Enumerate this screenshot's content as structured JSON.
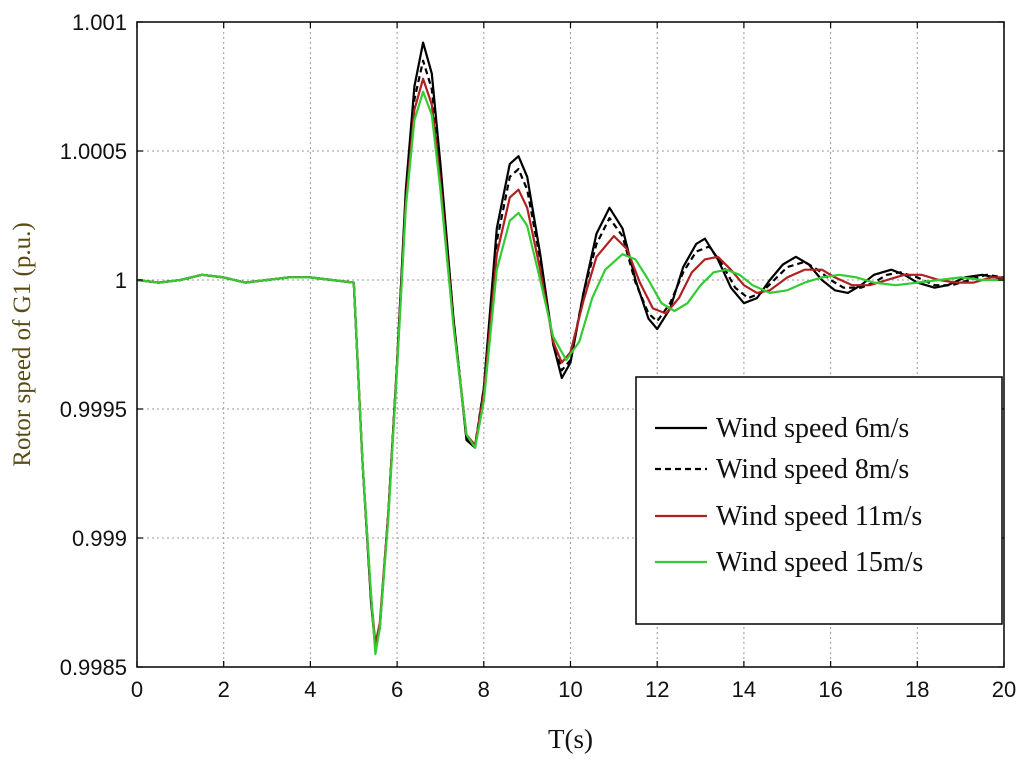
{
  "chart_data": {
    "type": "line",
    "xlabel": "T(s)",
    "ylabel": "Rotor speed of G1 (p.u.)",
    "xlim": [
      0,
      20
    ],
    "ylim": [
      0.9985,
      1.001
    ],
    "xticks": [
      0,
      2,
      4,
      6,
      8,
      10,
      12,
      14,
      16,
      18,
      20
    ],
    "xtick_labels": [
      "0",
      "2",
      "4",
      "6",
      "8",
      "10",
      "12",
      "14",
      "16",
      "18",
      "20"
    ],
    "yticks": [
      0.9985,
      0.999,
      0.9995,
      1.0,
      1.0005,
      1.001
    ],
    "ytick_labels": [
      "0.9985",
      "0.999",
      "0.9995",
      "1",
      "1.0005",
      "1.001"
    ],
    "grid": true,
    "legend_position": "lower-right",
    "series": [
      {
        "name": "Wind speed 6m/s",
        "color": "#000000",
        "dash": "solid",
        "points": [
          [
            0,
            1.0
          ],
          [
            0.5,
            0.99999
          ],
          [
            1,
            1.0
          ],
          [
            1.5,
            1.00002
          ],
          [
            2,
            1.00001
          ],
          [
            2.5,
            0.99999
          ],
          [
            3,
            1.0
          ],
          [
            3.5,
            1.00001
          ],
          [
            4,
            1.00001
          ],
          [
            4.5,
            1.0
          ],
          [
            5,
            0.99999
          ],
          [
            5.2,
            0.9993
          ],
          [
            5.4,
            0.99875
          ],
          [
            5.5,
            0.99857
          ],
          [
            5.6,
            0.99865
          ],
          [
            5.8,
            0.9991
          ],
          [
            6.0,
            0.99968
          ],
          [
            6.2,
            1.00035
          ],
          [
            6.4,
            1.00075
          ],
          [
            6.6,
            1.00092
          ],
          [
            6.8,
            1.0008
          ],
          [
            7.0,
            1.00045
          ],
          [
            7.3,
            0.99985
          ],
          [
            7.6,
            0.99938
          ],
          [
            7.8,
            0.99935
          ],
          [
            8.0,
            0.99958
          ],
          [
            8.3,
            1.0002
          ],
          [
            8.6,
            1.00045
          ],
          [
            8.8,
            1.00048
          ],
          [
            9.0,
            1.0004
          ],
          [
            9.3,
            1.0001
          ],
          [
            9.6,
            0.99975
          ],
          [
            9.8,
            0.99962
          ],
          [
            10.0,
            0.99968
          ],
          [
            10.3,
            0.99995
          ],
          [
            10.6,
            1.00018
          ],
          [
            10.9,
            1.00028
          ],
          [
            11.2,
            1.0002
          ],
          [
            11.5,
            1.0
          ],
          [
            11.8,
            0.99985
          ],
          [
            12.0,
            0.99981
          ],
          [
            12.3,
            0.99989
          ],
          [
            12.6,
            1.00005
          ],
          [
            12.9,
            1.00014
          ],
          [
            13.1,
            1.00016
          ],
          [
            13.4,
            1.00008
          ],
          [
            13.7,
            0.99997
          ],
          [
            14.0,
            0.99991
          ],
          [
            14.3,
            0.99993
          ],
          [
            14.6,
            1.0
          ],
          [
            14.9,
            1.00006
          ],
          [
            15.2,
            1.00009
          ],
          [
            15.5,
            1.00006
          ],
          [
            15.8,
            1.0
          ],
          [
            16.1,
            0.99996
          ],
          [
            16.4,
            0.99995
          ],
          [
            16.7,
            0.99998
          ],
          [
            17.0,
            1.00002
          ],
          [
            17.4,
            1.00004
          ],
          [
            17.7,
            1.00002
          ],
          [
            18.0,
            0.99999
          ],
          [
            18.4,
            0.99997
          ],
          [
            18.7,
            0.99998
          ],
          [
            19.1,
            1.00001
          ],
          [
            19.5,
            1.00002
          ],
          [
            19.8,
            1.00001
          ],
          [
            20,
            1.0
          ]
        ]
      },
      {
        "name": "Wind speed 8m/s",
        "color": "#000000",
        "dash": "dashed",
        "points": [
          [
            0,
            1.0
          ],
          [
            0.5,
            0.99999
          ],
          [
            1,
            1.0
          ],
          [
            1.5,
            1.00002
          ],
          [
            2,
            1.00001
          ],
          [
            2.5,
            0.99999
          ],
          [
            3,
            1.0
          ],
          [
            3.5,
            1.00001
          ],
          [
            4,
            1.00001
          ],
          [
            4.5,
            1.0
          ],
          [
            5,
            0.99999
          ],
          [
            5.2,
            0.9993
          ],
          [
            5.4,
            0.99876
          ],
          [
            5.5,
            0.99858
          ],
          [
            5.6,
            0.99866
          ],
          [
            5.8,
            0.9991
          ],
          [
            6.0,
            0.99968
          ],
          [
            6.2,
            1.00033
          ],
          [
            6.4,
            1.0007
          ],
          [
            6.6,
            1.00085
          ],
          [
            6.8,
            1.00074
          ],
          [
            7.0,
            1.00042
          ],
          [
            7.3,
            0.99985
          ],
          [
            7.6,
            0.99939
          ],
          [
            7.8,
            0.99936
          ],
          [
            8.0,
            0.99958
          ],
          [
            8.3,
            1.00015
          ],
          [
            8.6,
            1.0004
          ],
          [
            8.8,
            1.00043
          ],
          [
            9.0,
            1.00035
          ],
          [
            9.3,
            1.00008
          ],
          [
            9.6,
            0.99976
          ],
          [
            9.8,
            0.99965
          ],
          [
            10.0,
            0.99969
          ],
          [
            10.3,
            0.99995
          ],
          [
            10.6,
            1.00014
          ],
          [
            10.9,
            1.00024
          ],
          [
            11.2,
            1.00017
          ],
          [
            11.5,
            0.99999
          ],
          [
            11.8,
            0.99987
          ],
          [
            12.0,
            0.99984
          ],
          [
            12.3,
            0.99991
          ],
          [
            12.6,
            1.00003
          ],
          [
            12.9,
            1.00011
          ],
          [
            13.2,
            1.00013
          ],
          [
            13.5,
            1.00006
          ],
          [
            13.8,
            0.99997
          ],
          [
            14.1,
            0.99993
          ],
          [
            14.4,
            0.99995
          ],
          [
            14.7,
            1.0
          ],
          [
            15.0,
            1.00005
          ],
          [
            15.4,
            1.00007
          ],
          [
            15.7,
            1.00004
          ],
          [
            16.0,
            1.0
          ],
          [
            16.3,
            0.99997
          ],
          [
            16.7,
            0.99997
          ],
          [
            17.0,
            0.99999
          ],
          [
            17.3,
            1.00002
          ],
          [
            17.6,
            1.00003
          ],
          [
            18.0,
            1.00001
          ],
          [
            18.4,
            0.99998
          ],
          [
            18.8,
            0.99998
          ],
          [
            19.2,
            1.0
          ],
          [
            19.6,
            1.00002
          ],
          [
            20,
            1.00001
          ]
        ]
      },
      {
        "name": "Wind speed 11m/s",
        "color": "#b02020",
        "dash": "solid",
        "points": [
          [
            0,
            1.0
          ],
          [
            0.5,
            0.99999
          ],
          [
            1,
            1.0
          ],
          [
            1.5,
            1.00002
          ],
          [
            2,
            1.00001
          ],
          [
            2.5,
            0.99999
          ],
          [
            3,
            1.0
          ],
          [
            3.5,
            1.00001
          ],
          [
            4,
            1.00001
          ],
          [
            4.5,
            1.0
          ],
          [
            5,
            0.99999
          ],
          [
            5.2,
            0.9993
          ],
          [
            5.4,
            0.99877
          ],
          [
            5.5,
            0.99859
          ],
          [
            5.6,
            0.99867
          ],
          [
            5.8,
            0.9991
          ],
          [
            6.0,
            0.99967
          ],
          [
            6.2,
            1.0003
          ],
          [
            6.4,
            1.00066
          ],
          [
            6.6,
            1.00078
          ],
          [
            6.8,
            1.00068
          ],
          [
            7.0,
            1.00038
          ],
          [
            7.3,
            0.99983
          ],
          [
            7.6,
            0.9994
          ],
          [
            7.8,
            0.99936
          ],
          [
            8.0,
            0.99956
          ],
          [
            8.3,
            1.0001
          ],
          [
            8.6,
            1.00032
          ],
          [
            8.8,
            1.00035
          ],
          [
            9.0,
            1.00028
          ],
          [
            9.3,
            1.00004
          ],
          [
            9.6,
            0.99976
          ],
          [
            9.8,
            0.99968
          ],
          [
            10.0,
            0.99972
          ],
          [
            10.3,
            0.99992
          ],
          [
            10.6,
            1.00009
          ],
          [
            11.0,
            1.00017
          ],
          [
            11.3,
            1.00012
          ],
          [
            11.6,
            0.99999
          ],
          [
            11.9,
            0.99989
          ],
          [
            12.2,
            0.99987
          ],
          [
            12.5,
            0.99993
          ],
          [
            12.8,
            1.00003
          ],
          [
            13.1,
            1.00008
          ],
          [
            13.4,
            1.00009
          ],
          [
            13.7,
            1.00004
          ],
          [
            14.0,
            0.99998
          ],
          [
            14.3,
            0.99995
          ],
          [
            14.6,
            0.99996
          ],
          [
            15.0,
            1.00001
          ],
          [
            15.4,
            1.00004
          ],
          [
            15.8,
            1.00004
          ],
          [
            16.1,
            1.00001
          ],
          [
            16.5,
            0.99998
          ],
          [
            16.9,
            0.99998
          ],
          [
            17.3,
            1.0
          ],
          [
            17.7,
            1.00002
          ],
          [
            18.1,
            1.00002
          ],
          [
            18.5,
            1.0
          ],
          [
            18.9,
            0.99999
          ],
          [
            19.3,
            0.99999
          ],
          [
            19.7,
            1.00001
          ],
          [
            20,
            1.00001
          ]
        ]
      },
      {
        "name": "Wind speed 15m/s",
        "color": "#33cc33",
        "dash": "solid",
        "points": [
          [
            0,
            1.0
          ],
          [
            0.5,
            0.99999
          ],
          [
            1,
            1.0
          ],
          [
            1.5,
            1.00002
          ],
          [
            2,
            1.00001
          ],
          [
            2.5,
            0.99999
          ],
          [
            3,
            1.0
          ],
          [
            3.5,
            1.00001
          ],
          [
            4,
            1.00001
          ],
          [
            4.5,
            1.0
          ],
          [
            5,
            0.99999
          ],
          [
            5.2,
            0.9993
          ],
          [
            5.4,
            0.99878
          ],
          [
            5.5,
            0.99855
          ],
          [
            5.6,
            0.99865
          ],
          [
            5.8,
            0.99908
          ],
          [
            6.0,
            0.99966
          ],
          [
            6.2,
            1.00028
          ],
          [
            6.4,
            1.00062
          ],
          [
            6.6,
            1.00073
          ],
          [
            6.8,
            1.00064
          ],
          [
            7.0,
            1.00035
          ],
          [
            7.3,
            0.99982
          ],
          [
            7.6,
            0.9994
          ],
          [
            7.8,
            0.99935
          ],
          [
            8.0,
            0.99953
          ],
          [
            8.3,
            1.00004
          ],
          [
            8.6,
            1.00023
          ],
          [
            8.8,
            1.00026
          ],
          [
            9.0,
            1.00021
          ],
          [
            9.3,
            1.0
          ],
          [
            9.6,
            0.99978
          ],
          [
            9.9,
            0.99969
          ],
          [
            10.2,
            0.99976
          ],
          [
            10.5,
            0.99993
          ],
          [
            10.8,
            1.00004
          ],
          [
            11.2,
            1.0001
          ],
          [
            11.5,
            1.00008
          ],
          [
            11.8,
            1.0
          ],
          [
            12.1,
            0.99991
          ],
          [
            12.4,
            0.99988
          ],
          [
            12.7,
            0.99991
          ],
          [
            13.0,
            0.99998
          ],
          [
            13.3,
            1.00003
          ],
          [
            13.6,
            1.00004
          ],
          [
            13.9,
            1.00002
          ],
          [
            14.2,
            0.99998
          ],
          [
            14.6,
            0.99995
          ],
          [
            15.0,
            0.99996
          ],
          [
            15.4,
            0.99999
          ],
          [
            15.8,
            1.00001
          ],
          [
            16.2,
            1.00002
          ],
          [
            16.6,
            1.00001
          ],
          [
            17.0,
            0.99999
          ],
          [
            17.5,
            0.99998
          ],
          [
            18.0,
            0.99999
          ],
          [
            18.5,
            1.0
          ],
          [
            19.0,
            1.00001
          ],
          [
            19.5,
            1.0
          ],
          [
            20,
            1.0
          ]
        ]
      }
    ]
  }
}
